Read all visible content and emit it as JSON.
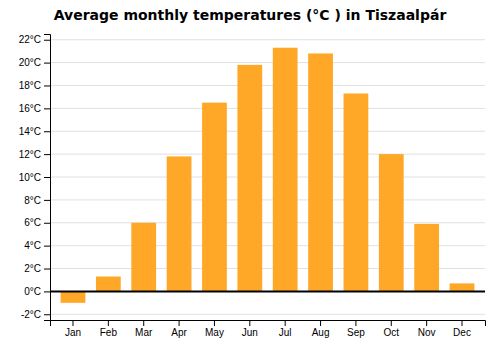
{
  "chart_data": {
    "type": "bar",
    "title": "Average monthly temperatures (°C ) in Tiszaalpár",
    "categories": [
      "Jan",
      "Feb",
      "Mar",
      "Apr",
      "May",
      "Jun",
      "Jul",
      "Aug",
      "Sep",
      "Oct",
      "Nov",
      "Dec"
    ],
    "values": [
      -1.0,
      1.3,
      6.0,
      11.8,
      16.5,
      19.8,
      21.3,
      20.8,
      17.3,
      12.0,
      5.9,
      0.7
    ],
    "color": "#FFA726",
    "ylim": [
      -2.5,
      22.5
    ],
    "yticks": [
      {
        "value": -2,
        "label": "-2°C"
      },
      {
        "value": 0,
        "label": "0°C"
      },
      {
        "value": 2,
        "label": "2°C"
      },
      {
        "value": 4,
        "label": "4°C"
      },
      {
        "value": 6,
        "label": "6°C"
      },
      {
        "value": 8,
        "label": "8°C"
      },
      {
        "value": 10,
        "label": "10°C"
      },
      {
        "value": 12,
        "label": "12°C"
      },
      {
        "value": 14,
        "label": "14°C"
      },
      {
        "value": 16,
        "label": "16°C"
      },
      {
        "value": 18,
        "label": "18°C"
      },
      {
        "value": 20,
        "label": "20°C"
      },
      {
        "value": 22,
        "label": "22°C"
      }
    ],
    "grid": true
  }
}
